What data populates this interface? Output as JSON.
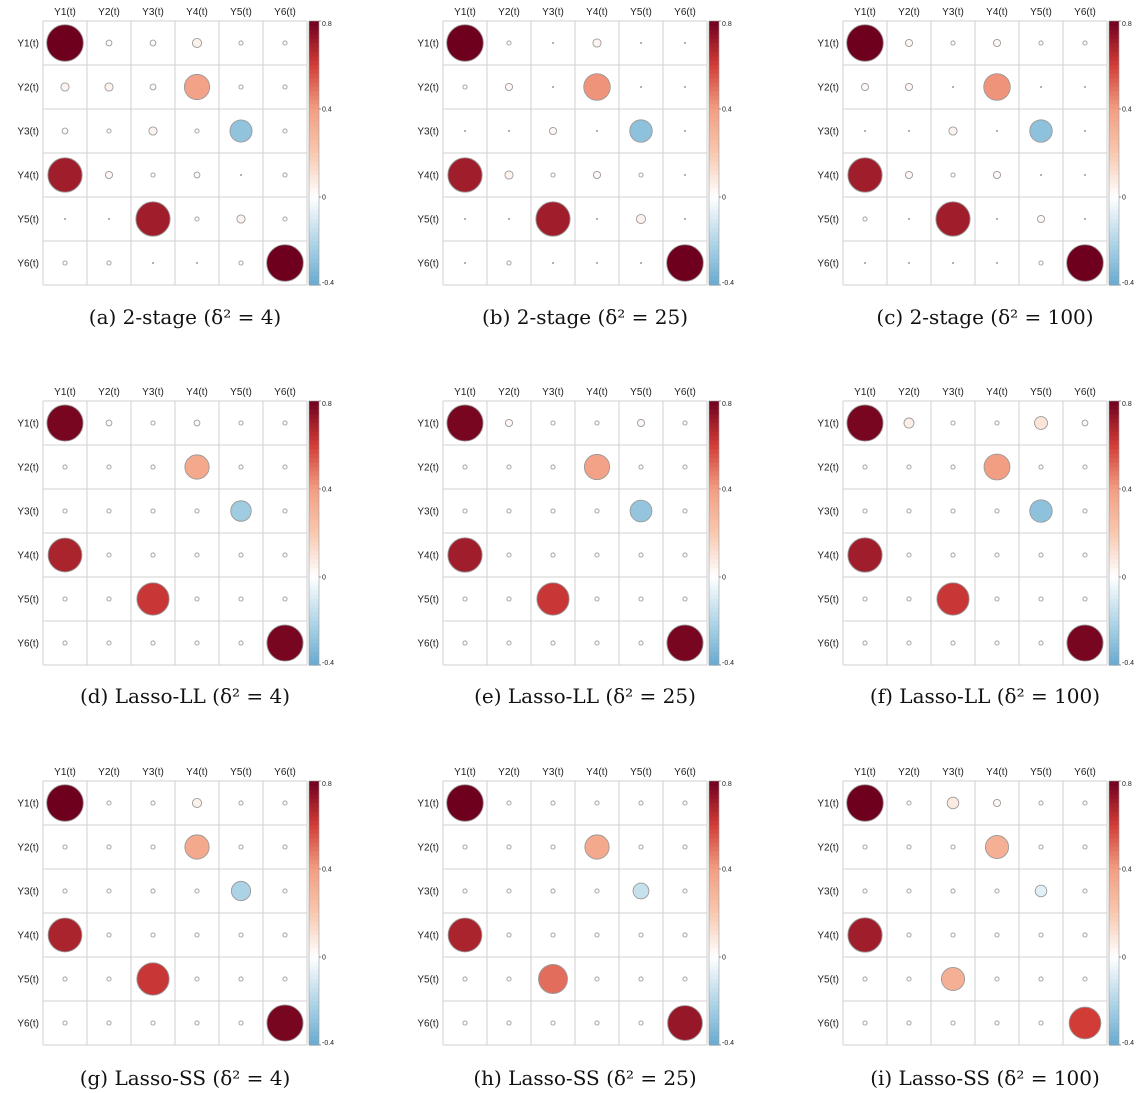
{
  "chart_data": [
    {
      "type": "heatmap",
      "caption": "(a) 2-stage (δ² = 4)",
      "colorbar_ticks": [
        "0.8",
        "0.4",
        "0",
        "-0.4"
      ],
      "colorbar_range": [
        -0.4,
        0.8
      ],
      "rows": [
        "Y1(t)",
        "Y2(t)",
        "Y3(t)",
        "Y4(t)",
        "Y5(t)",
        "Y6(t)"
      ],
      "cols": [
        "Y1(t)",
        "Y2(t)",
        "Y3(t)",
        "Y4(t)",
        "Y5(t)",
        "Y6(t)"
      ],
      "values": [
        [
          0.8,
          0.02,
          0.02,
          0.05,
          0.01,
          0.01
        ],
        [
          0.04,
          0.04,
          0.02,
          0.38,
          0.01,
          0.01
        ],
        [
          0.02,
          0.01,
          0.04,
          0.01,
          -0.29,
          0.01
        ],
        [
          0.7,
          0.03,
          0.01,
          0.02,
          0.0,
          0.01
        ],
        [
          0.0,
          0.0,
          0.7,
          0.01,
          0.04,
          0.01
        ],
        [
          0.01,
          0.01,
          0.0,
          0.0,
          0.01,
          0.8
        ]
      ]
    },
    {
      "type": "heatmap",
      "caption": "(b) 2-stage (δ² = 25)",
      "colorbar_ticks": [
        "0.8",
        "0.4",
        "0",
        "-0.4"
      ],
      "colorbar_range": [
        -0.4,
        0.8
      ],
      "rows": [
        "Y1(t)",
        "Y2(t)",
        "Y3(t)",
        "Y4(t)",
        "Y5(t)",
        "Y6(t)"
      ],
      "cols": [
        "Y1(t)",
        "Y2(t)",
        "Y3(t)",
        "Y4(t)",
        "Y5(t)",
        "Y6(t)"
      ],
      "values": [
        [
          0.8,
          0.01,
          0.0,
          0.04,
          0.0,
          0.0
        ],
        [
          0.01,
          0.03,
          0.0,
          0.42,
          0.0,
          0.0
        ],
        [
          0.0,
          0.0,
          0.03,
          0.0,
          -0.3,
          0.0
        ],
        [
          0.7,
          0.04,
          0.01,
          0.03,
          0.01,
          0.0
        ],
        [
          0.0,
          0.0,
          0.7,
          0.0,
          0.05,
          0.0
        ],
        [
          0.0,
          0.01,
          0.0,
          0.0,
          0.0,
          0.8
        ]
      ]
    },
    {
      "type": "heatmap",
      "caption": "(c) 2-stage (δ² = 100)",
      "colorbar_ticks": [
        "0.8",
        "0.4",
        "0",
        "-0.4"
      ],
      "colorbar_range": [
        -0.4,
        0.8
      ],
      "rows": [
        "Y1(t)",
        "Y2(t)",
        "Y3(t)",
        "Y4(t)",
        "Y5(t)",
        "Y6(t)"
      ],
      "cols": [
        "Y1(t)",
        "Y2(t)",
        "Y3(t)",
        "Y4(t)",
        "Y5(t)",
        "Y6(t)"
      ],
      "values": [
        [
          0.8,
          0.03,
          0.01,
          0.03,
          0.01,
          0.01
        ],
        [
          0.03,
          0.03,
          0.0,
          0.42,
          0.0,
          0.0
        ],
        [
          0.0,
          0.0,
          0.04,
          0.0,
          -0.3,
          0.0
        ],
        [
          0.7,
          0.03,
          0.01,
          0.03,
          0.0,
          0.0
        ],
        [
          0.01,
          0.0,
          0.7,
          0.0,
          0.03,
          0.0
        ],
        [
          0.0,
          0.0,
          0.0,
          0.0,
          0.01,
          0.8
        ]
      ]
    },
    {
      "type": "heatmap",
      "caption": "(d) Lasso-LL (δ² = 4)",
      "colorbar_ticks": [
        "0.8",
        "0.4",
        "0",
        "-0.4"
      ],
      "colorbar_range": [
        -0.4,
        0.8
      ],
      "rows": [
        "Y1(t)",
        "Y2(t)",
        "Y3(t)",
        "Y4(t)",
        "Y5(t)",
        "Y6(t)"
      ],
      "cols": [
        "Y1(t)",
        "Y2(t)",
        "Y3(t)",
        "Y4(t)",
        "Y5(t)",
        "Y6(t)"
      ],
      "values": [
        [
          0.78,
          0.02,
          0.01,
          0.02,
          0.01,
          0.01
        ],
        [
          0.01,
          0.01,
          0.01,
          0.35,
          0.01,
          0.01
        ],
        [
          0.01,
          0.01,
          0.01,
          0.01,
          -0.25,
          0.01
        ],
        [
          0.68,
          0.01,
          0.01,
          0.01,
          0.01,
          0.01
        ],
        [
          0.01,
          0.01,
          0.62,
          0.01,
          0.01,
          0.01
        ],
        [
          0.01,
          0.01,
          0.01,
          0.01,
          0.01,
          0.78
        ]
      ]
    },
    {
      "type": "heatmap",
      "caption": "(e) Lasso-LL (δ² = 25)",
      "colorbar_ticks": [
        "0.8",
        "0.4",
        "0",
        "-0.4"
      ],
      "colorbar_range": [
        -0.4,
        0.8
      ],
      "rows": [
        "Y1(t)",
        "Y2(t)",
        "Y3(t)",
        "Y4(t)",
        "Y5(t)",
        "Y6(t)"
      ],
      "cols": [
        "Y1(t)",
        "Y2(t)",
        "Y3(t)",
        "Y4(t)",
        "Y5(t)",
        "Y6(t)"
      ],
      "values": [
        [
          0.78,
          0.03,
          0.01,
          0.01,
          0.03,
          -0.01
        ],
        [
          0.01,
          0.01,
          0.01,
          0.38,
          0.01,
          0.01
        ],
        [
          0.01,
          0.01,
          0.01,
          0.01,
          -0.28,
          0.01
        ],
        [
          0.7,
          0.01,
          0.01,
          0.01,
          0.01,
          0.01
        ],
        [
          0.01,
          0.01,
          0.62,
          0.01,
          0.01,
          0.01
        ],
        [
          0.01,
          0.01,
          0.01,
          0.01,
          0.01,
          0.78
        ]
      ]
    },
    {
      "type": "heatmap",
      "caption": "(f) Lasso-LL (δ² = 100)",
      "colorbar_ticks": [
        "0.8",
        "0.4",
        "0",
        "-0.4"
      ],
      "colorbar_range": [
        -0.4,
        0.8
      ],
      "rows": [
        "Y1(t)",
        "Y2(t)",
        "Y3(t)",
        "Y4(t)",
        "Y5(t)",
        "Y6(t)"
      ],
      "cols": [
        "Y1(t)",
        "Y2(t)",
        "Y3(t)",
        "Y4(t)",
        "Y5(t)",
        "Y6(t)"
      ],
      "values": [
        [
          0.78,
          0.06,
          0.01,
          0.01,
          0.1,
          -0.02
        ],
        [
          0.01,
          0.01,
          0.01,
          0.4,
          0.01,
          0.01
        ],
        [
          0.01,
          0.01,
          0.01,
          0.01,
          -0.3,
          0.01
        ],
        [
          0.7,
          0.01,
          0.01,
          0.01,
          0.01,
          0.01
        ],
        [
          0.01,
          0.01,
          0.62,
          0.01,
          0.01,
          0.01
        ],
        [
          0.01,
          0.01,
          0.01,
          0.01,
          0.01,
          0.78
        ]
      ]
    },
    {
      "type": "heatmap",
      "caption": "(g) Lasso-SS (δ² = 4)",
      "colorbar_ticks": [
        "0.8",
        "0.4",
        "0",
        "-0.4"
      ],
      "colorbar_range": [
        -0.4,
        0.8
      ],
      "rows": [
        "Y1(t)",
        "Y2(t)",
        "Y3(t)",
        "Y4(t)",
        "Y5(t)",
        "Y6(t)"
      ],
      "cols": [
        "Y1(t)",
        "Y2(t)",
        "Y3(t)",
        "Y4(t)",
        "Y5(t)",
        "Y6(t)"
      ],
      "values": [
        [
          0.8,
          0.01,
          0.01,
          0.05,
          0.01,
          0.01
        ],
        [
          0.01,
          0.01,
          0.01,
          0.35,
          0.01,
          0.01
        ],
        [
          0.01,
          0.01,
          0.01,
          0.01,
          -0.22,
          0.01
        ],
        [
          0.68,
          0.01,
          0.01,
          0.01,
          0.01,
          0.01
        ],
        [
          0.01,
          0.01,
          0.62,
          0.01,
          0.01,
          0.01
        ],
        [
          0.01,
          0.01,
          0.01,
          0.01,
          0.01,
          0.78
        ]
      ]
    },
    {
      "type": "heatmap",
      "caption": "(h) Lasso-SS (δ² = 25)",
      "colorbar_ticks": [
        "0.8",
        "0.4",
        "0",
        "-0.4"
      ],
      "colorbar_range": [
        -0.4,
        0.8
      ],
      "rows": [
        "Y1(t)",
        "Y2(t)",
        "Y3(t)",
        "Y4(t)",
        "Y5(t)",
        "Y6(t)"
      ],
      "cols": [
        "Y1(t)",
        "Y2(t)",
        "Y3(t)",
        "Y4(t)",
        "Y5(t)",
        "Y6(t)"
      ],
      "values": [
        [
          0.8,
          0.01,
          0.01,
          0.01,
          0.01,
          0.01
        ],
        [
          0.01,
          0.01,
          0.01,
          0.35,
          0.01,
          0.01
        ],
        [
          0.01,
          0.01,
          0.01,
          0.01,
          -0.15,
          0.01
        ],
        [
          0.68,
          0.01,
          0.01,
          0.01,
          0.01,
          0.01
        ],
        [
          0.01,
          0.01,
          0.5,
          0.01,
          0.01,
          0.01
        ],
        [
          0.01,
          0.01,
          0.01,
          0.01,
          0.01,
          0.72
        ]
      ]
    },
    {
      "type": "heatmap",
      "caption": "(i) Lasso-SS (δ² = 100)",
      "colorbar_ticks": [
        "0.8",
        "0.4",
        "0",
        "-0.4"
      ],
      "colorbar_range": [
        -0.4,
        0.8
      ],
      "rows": [
        "Y1(t)",
        "Y2(t)",
        "Y3(t)",
        "Y4(t)",
        "Y5(t)",
        "Y6(t)"
      ],
      "cols": [
        "Y1(t)",
        "Y2(t)",
        "Y3(t)",
        "Y4(t)",
        "Y5(t)",
        "Y6(t)"
      ],
      "values": [
        [
          0.8,
          0.01,
          0.08,
          0.03,
          0.01,
          0.01
        ],
        [
          0.01,
          0.01,
          0.01,
          0.32,
          0.01,
          0.01
        ],
        [
          0.01,
          0.01,
          0.01,
          0.01,
          -0.08,
          0.01
        ],
        [
          0.7,
          0.01,
          0.01,
          0.01,
          0.01,
          0.01
        ],
        [
          0.01,
          0.01,
          0.32,
          0.01,
          0.01,
          0.01
        ],
        [
          0.01,
          0.01,
          0.01,
          0.01,
          0.01,
          0.6
        ]
      ]
    }
  ]
}
